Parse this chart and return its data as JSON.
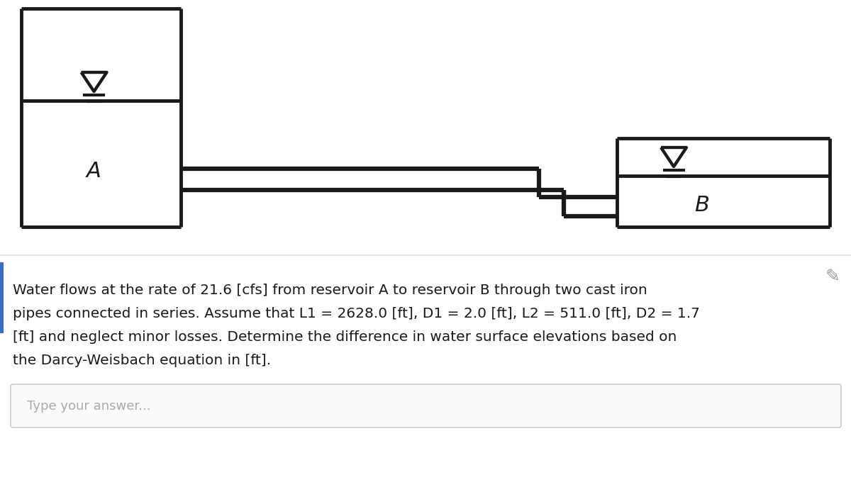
{
  "bg_color": "#ffffff",
  "line_color": "#1a1a1a",
  "text_color": "#1a1a1a",
  "label_A": "A",
  "label_B": "B",
  "question_line1": "Water flows at the rate of 21.6 [cfs] from reservoir A to reservoir B through two cast iron",
  "question_line2": "pipes connected in series. Assume that L1 = 2628.0 [ft], D1 = 2.0 [ft], L2 = 511.0 [ft], D2 = 1.7",
  "question_line3": "[ft] and neglect minor losses. Determine the difference in water surface elevations based on",
  "question_line4": "the Darcy-Weisbach equation in [ft].",
  "answer_placeholder": "Type your answer...",
  "divider_color": "#e0e0e0",
  "left_bar_color": "#3a6bc9",
  "answer_box_border": "#cccccc",
  "answer_box_bg": "#fafafa"
}
